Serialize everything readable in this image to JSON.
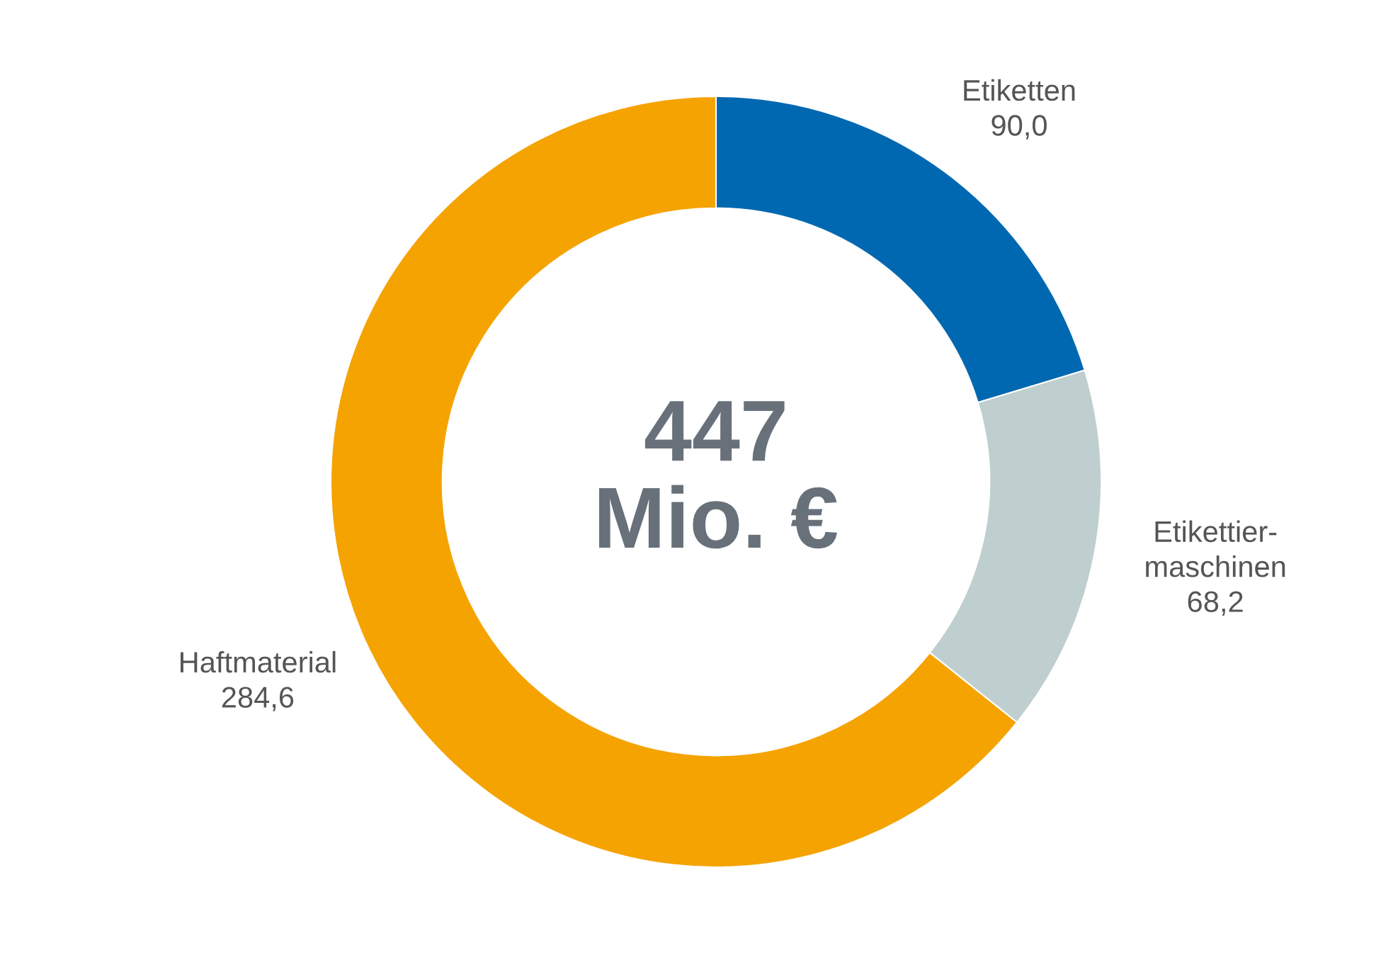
{
  "chart_data": {
    "type": "donut",
    "categories": [
      "Etiketten",
      "Etikettier-\nmaschinen",
      "Haftmaterial"
    ],
    "values": [
      90.0,
      68.2,
      284.6
    ],
    "value_labels": [
      "90,0",
      "68,2",
      "284,6"
    ],
    "colors": [
      "#0068b1",
      "#bfcece",
      "#f5a300"
    ],
    "annotations": [
      "447\nMio. €"
    ]
  }
}
